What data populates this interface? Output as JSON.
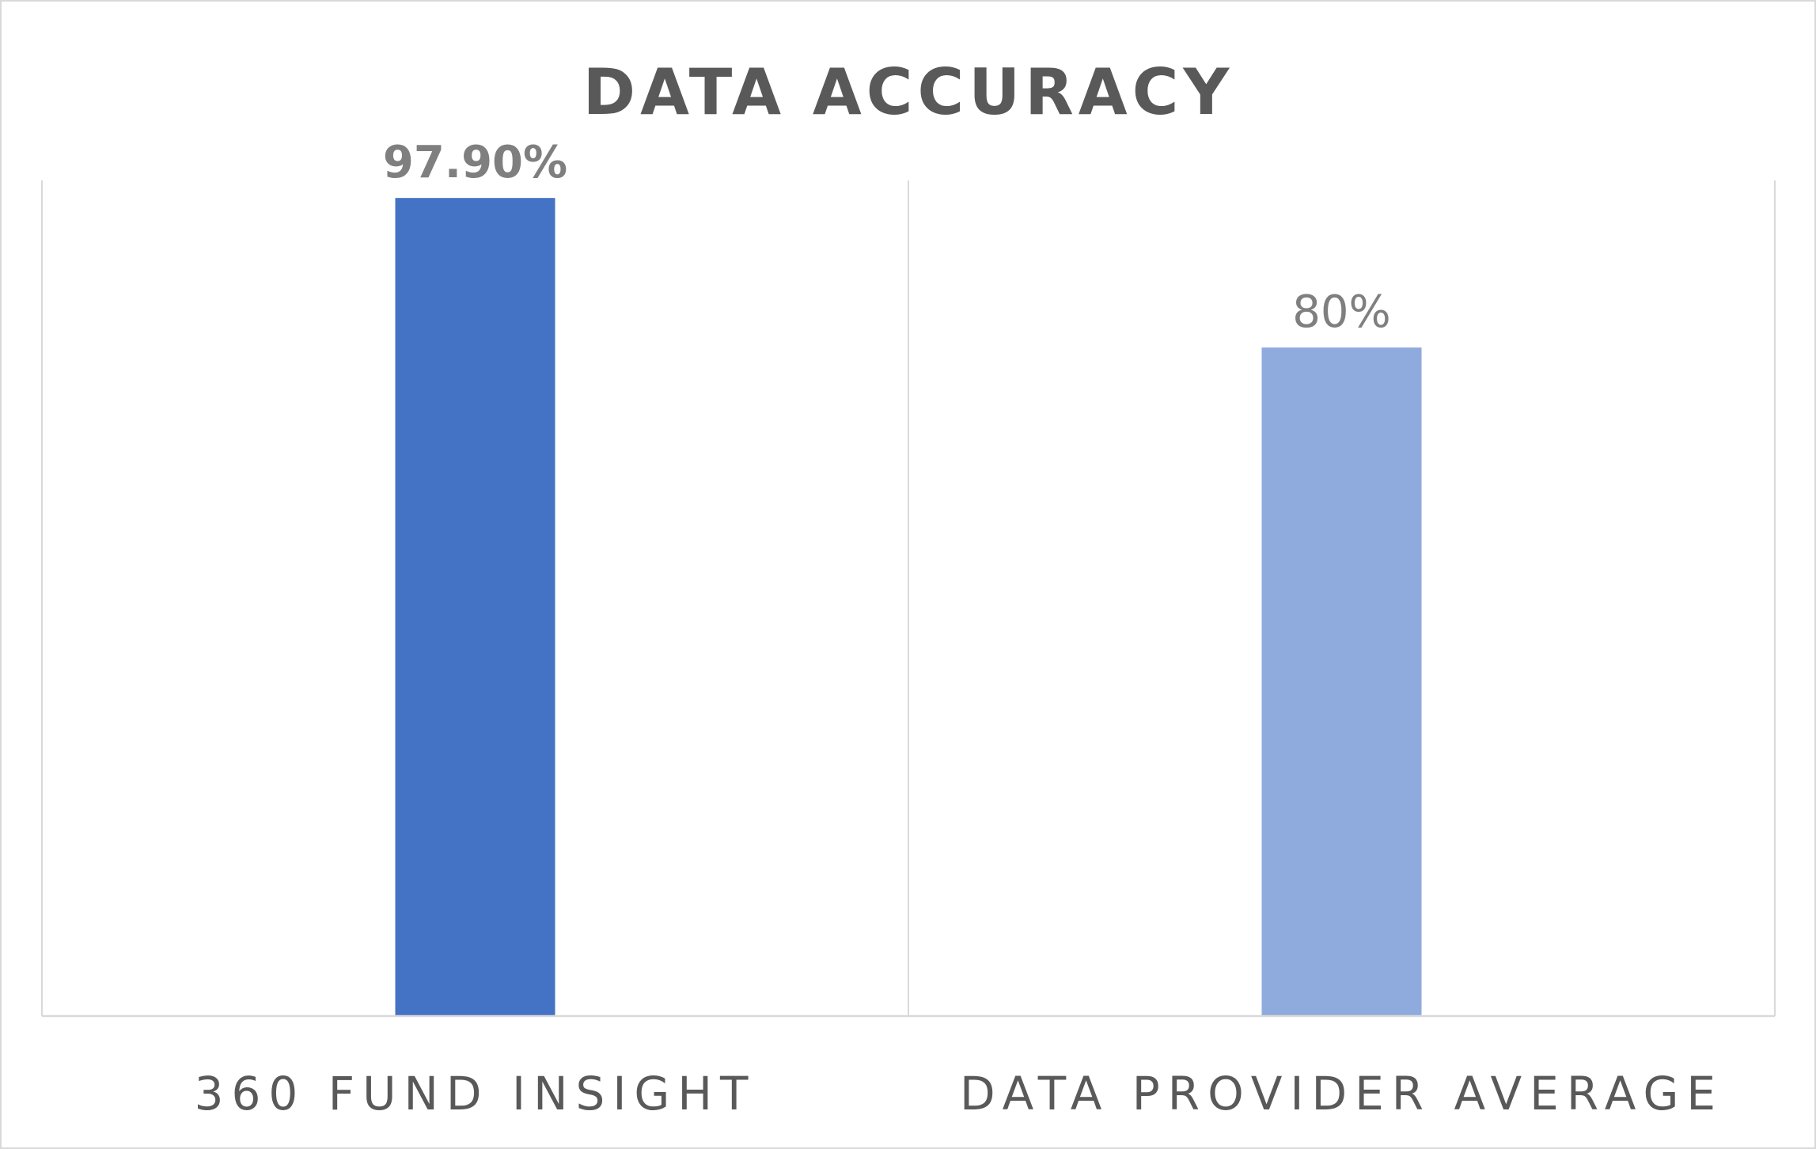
{
  "chart_data": {
    "type": "bar",
    "title": "DATA ACCURACY",
    "categories": [
      "360 FUND INSIGHT",
      "DATA PROVIDER AVERAGE"
    ],
    "values": [
      97.9,
      80
    ],
    "data_labels": [
      "97.90%",
      "80%"
    ],
    "bar_colors": [
      "#4472c4",
      "#8faadc"
    ],
    "label_colors": [
      "#7f7f7f",
      "#7f7f7f"
    ],
    "ylim": [
      0,
      100
    ],
    "xlabel": "",
    "ylabel": "",
    "grid": false,
    "legend": "none"
  }
}
